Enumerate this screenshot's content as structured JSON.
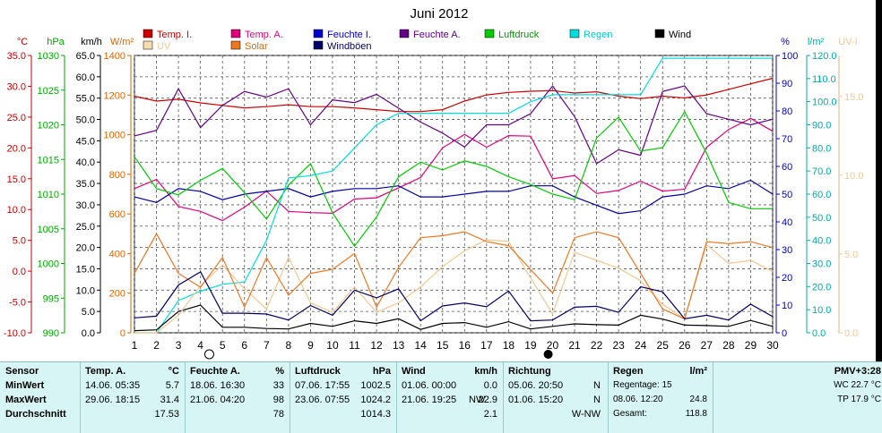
{
  "chart_data": {
    "type": "line",
    "title": "Juni 2012",
    "x": [
      1,
      2,
      3,
      4,
      5,
      6,
      7,
      8,
      9,
      10,
      11,
      12,
      13,
      14,
      15,
      16,
      17,
      18,
      19,
      20,
      21,
      22,
      23,
      24,
      25,
      26,
      27,
      28,
      29,
      30
    ],
    "xlim": [
      1,
      30
    ],
    "moon_markers": [
      {
        "day": 4.4,
        "phase": "full"
      },
      {
        "day": 19.8,
        "phase": "new"
      }
    ],
    "axes": [
      {
        "id": "temp",
        "label": "°C",
        "color": "#cc0000",
        "side": "left",
        "min": -10,
        "max": 35,
        "step": 5,
        "decimals": 1
      },
      {
        "id": "hpa",
        "label": "hPa",
        "color": "#00aa00",
        "side": "left",
        "min": 990,
        "max": 1030,
        "step": 5,
        "decimals": 0
      },
      {
        "id": "kmh",
        "label": "km/h",
        "color": "#000000",
        "side": "left",
        "min": 0,
        "max": 65,
        "step": 5,
        "decimals": 1
      },
      {
        "id": "wm2",
        "label": "W/m²",
        "color": "#dd6600",
        "side": "left",
        "min": 0,
        "max": 1400,
        "step": 200,
        "decimals": 0
      },
      {
        "id": "pct",
        "label": "%",
        "color": "#0000cc",
        "side": "right",
        "min": 0,
        "max": 100,
        "step": 10,
        "decimals": 0
      },
      {
        "id": "lm2",
        "label": "l/m²",
        "color": "#00aaaa",
        "side": "right",
        "min": 0,
        "max": 120,
        "step": 10,
        "decimals": 1
      },
      {
        "id": "uv",
        "label": "UV-I",
        "color": "#f0c890",
        "side": "right",
        "min": 0,
        "max": 17.6,
        "step": 5,
        "decimals": 1
      }
    ],
    "series": [
      {
        "name": "Temp. I.",
        "axis": "temp",
        "color": "#cc0000",
        "values": [
          28.4,
          27.6,
          27.9,
          27.3,
          26.9,
          26.5,
          26.7,
          27.0,
          26.7,
          26.7,
          26.5,
          26.2,
          25.9,
          25.9,
          26.2,
          27.6,
          28.6,
          29.0,
          29.2,
          29.3,
          28.9,
          29.1,
          28.4,
          28.0,
          28.4,
          28.1,
          28.6,
          29.5,
          30.4,
          31.3
        ]
      },
      {
        "name": "Temp. A.",
        "axis": "temp",
        "color": "#e0007c",
        "values": [
          13.4,
          14.9,
          10.5,
          9.7,
          8.2,
          10.4,
          13.0,
          9.7,
          9.5,
          9.4,
          11.7,
          11.9,
          13.5,
          15.2,
          20.0,
          22.2,
          20.1,
          22.0,
          21.9,
          15.0,
          15.5,
          12.6,
          13.1,
          14.6,
          13.0,
          13.3,
          20.1,
          23.0,
          24.8,
          22.7
        ]
      },
      {
        "name": "Feuchte I.",
        "axis": "pct",
        "color": "#0000aa",
        "values": [
          49,
          47,
          52,
          51,
          48,
          50,
          51,
          52,
          49,
          51,
          52,
          52,
          53,
          49,
          49,
          50,
          51,
          51,
          53,
          53,
          49,
          46,
          43,
          44,
          49,
          50,
          53,
          52,
          55,
          50
        ]
      },
      {
        "name": "Feuchte A.",
        "axis": "pct",
        "color": "#660088",
        "values": [
          71,
          73,
          88,
          74,
          82,
          87,
          85,
          88,
          75,
          84,
          83,
          86,
          81,
          76,
          72,
          67,
          75,
          75,
          79,
          89,
          78,
          61,
          66,
          64,
          87,
          89,
          79,
          77,
          75,
          77
        ]
      },
      {
        "name": "Luftdruck",
        "axis": "hpa",
        "color": "#00cc00",
        "values": [
          1015.4,
          1010.8,
          1009.9,
          1012.0,
          1013.7,
          1010.2,
          1006.4,
          1011.3,
          1014.4,
          1007.3,
          1002.5,
          1006.7,
          1012.5,
          1014.6,
          1013.5,
          1014.8,
          1014.0,
          1012.5,
          1011.4,
          1010.0,
          1009.2,
          1018.1,
          1021.1,
          1016.2,
          1016.7,
          1021.9,
          1015.9,
          1008.8,
          1007.9,
          1007.9
        ]
      },
      {
        "name": "Regen",
        "axis": "lm2",
        "color": "#00dddd",
        "values": [
          0,
          0,
          14,
          18,
          21,
          22,
          40,
          67,
          68,
          70,
          80,
          90,
          95,
          95,
          95,
          95,
          95,
          95,
          100,
          103,
          103,
          103,
          103,
          103,
          118.8,
          118.8,
          118.8,
          118.8,
          118.8,
          118.8
        ]
      },
      {
        "name": "Wind",
        "axis": "kmh",
        "color": "#000000",
        "values": [
          0.5,
          0.7,
          5.0,
          6.5,
          1.3,
          1.3,
          1.0,
          0.9,
          2.2,
          1.5,
          2.8,
          2.2,
          3.3,
          0.8,
          2.2,
          2.4,
          1.3,
          2.6,
          0.9,
          1.5,
          2.1,
          1.9,
          1.8,
          4.1,
          3.2,
          1.8,
          1.7,
          1.5,
          2.9,
          1.5
        ]
      },
      {
        "name": "UV",
        "axis": "uv",
        "color": "#f0c890",
        "values": [
          0,
          0,
          1.1,
          3.0,
          4.3,
          2.8,
          1.5,
          4.8,
          1.9,
          1.3,
          2.9,
          1.3,
          1.9,
          2.9,
          4.2,
          5.2,
          5.9,
          5.8,
          3.5,
          1.2,
          5.1,
          4.6,
          4.1,
          3.3,
          1.8,
          0.9,
          5.6,
          4.4,
          4.6,
          3.9
        ]
      },
      {
        "name": "Solar",
        "axis": "wm2",
        "color": "#ee7722",
        "values": [
          300,
          500,
          300,
          230,
          380,
          130,
          380,
          190,
          300,
          320,
          400,
          130,
          330,
          480,
          490,
          510,
          460,
          440,
          320,
          200,
          480,
          510,
          480,
          300,
          120,
          70,
          460,
          450,
          460,
          430
        ]
      },
      {
        "name": "Windböen",
        "axis": "kmh",
        "color": "#000066",
        "values": [
          3.5,
          3.9,
          11.2,
          14.3,
          4.6,
          4.6,
          4.4,
          3.0,
          6.4,
          4.1,
          10.0,
          8.2,
          10.3,
          2.8,
          6.3,
          7.0,
          6.1,
          9.8,
          2.8,
          3.0,
          6.0,
          6.2,
          4.8,
          10.8,
          9.6,
          3.3,
          4.1,
          3.0,
          6.7,
          3.8
        ]
      }
    ],
    "legend": [
      {
        "label": "Temp. I.",
        "color": "#cc0000",
        "text_color": "#cc0000"
      },
      {
        "label": "Temp. A.",
        "color": "#e0007c",
        "text_color": "#e0007c"
      },
      {
        "label": "Feuchte I.",
        "color": "#0000cc",
        "text_color": "#0000cc"
      },
      {
        "label": "Feuchte A.",
        "color": "#660088",
        "text_color": "#660088"
      },
      {
        "label": "Luftdruck",
        "color": "#00cc00",
        "text_color": "#009900"
      },
      {
        "label": "Regen",
        "color": "#00dddd",
        "text_color": "#00cccc"
      },
      {
        "label": "Wind",
        "color": "#000000",
        "text_color": "#000000"
      },
      {
        "label": "UV",
        "color": "#f7dcb0",
        "text_color": "#f0c890"
      },
      {
        "label": "Solar",
        "color": "#ee7722",
        "text_color": "#dd6600"
      },
      {
        "label": "Windböen",
        "color": "#000066",
        "text_color": "#000066"
      }
    ]
  },
  "stats": {
    "labels": {
      "sensor": "Sensor",
      "min": "MinWert",
      "max": "MaxWert",
      "avg": "Durchschnitt"
    },
    "temp": {
      "title": "Temp. A.",
      "unit": "°C",
      "min_date": "14.06.  05:35",
      "min": "5.7",
      "max_date": "29.06.  18:15",
      "max": "31.4",
      "avg": "17.53"
    },
    "hum": {
      "title": "Feuchte A.",
      "unit": "%",
      "min_date": "18.06.  16:30",
      "min": "33",
      "max_date": "21.06.  04:20",
      "max": "98",
      "avg": "78"
    },
    "press": {
      "title": "Luftdruck",
      "unit": "hPa",
      "min_date": "07.06.  17:55",
      "min": "1002.5",
      "max_date": "23.06.  07:55",
      "max": "1024.2",
      "avg": "1014.3"
    },
    "wind": {
      "title": "Wind",
      "unit": "km/h",
      "min_date": "01.06.  00:00",
      "min": "0.0",
      "max_date": "21.06.  19:25",
      "max_dir": "NW",
      "max": "22.9",
      "avg": "2.1"
    },
    "dir": {
      "title": "Richtung",
      "min_date": "05.06.  20:50",
      "min": "N",
      "max_date": "01.06.  15:20",
      "max": "N",
      "avg": "W-NW"
    },
    "rain": {
      "title": "Regen",
      "unit": "l/m²",
      "days_label": "Regentage: 15",
      "max_date": "08.06.  12:20",
      "max": "24.8",
      "total_label": "Gesamt:",
      "total": "118.8"
    },
    "pmv": {
      "title": "PMV+3:28",
      "wc": "WC 22.7 °C",
      "tp": "TP 17.9 °C"
    }
  }
}
